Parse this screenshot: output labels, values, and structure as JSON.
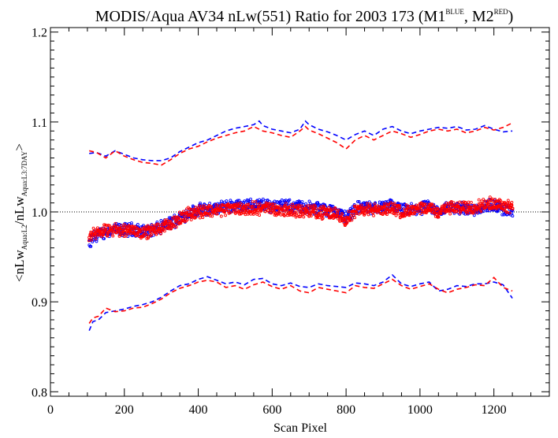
{
  "chart_data": {
    "type": "scatter",
    "title_main": "MODIS/Aqua AV34 nLw(551) Ratio for 2003 173 (M1",
    "title_sup1": "BLUE",
    "title_sep": ", M2",
    "title_sup2": "RED",
    "title_end": ")",
    "xlabel": "Scan Pixel",
    "ylabel_parts": {
      "open": "<nLw",
      "sub1": "Aqua:L2",
      "mid": "/nLw",
      "sub2": "Aqua:L3:7DAY",
      "close": ">"
    },
    "xlim": [
      0,
      1350
    ],
    "ylim": [
      0.795,
      1.205
    ],
    "xticks": [
      0,
      200,
      400,
      600,
      800,
      1000,
      1200
    ],
    "xtick_labels": [
      "0",
      "200",
      "400",
      "600",
      "800",
      "1000",
      "1200"
    ],
    "yticks": [
      0.8,
      0.9,
      1.0,
      1.1,
      1.2
    ],
    "ytick_labels": [
      "0.8",
      "0.9",
      "1.0",
      "1.1",
      "1.2"
    ],
    "reference_line": {
      "y": 1.0,
      "style": "dotted",
      "color": "#000000"
    },
    "grid": false,
    "series": [
      {
        "color": "#0000ff",
        "marker": "open-circle",
        "mean_profile": {
          "x": [
            105,
            115,
            130,
            150,
            175,
            200,
            225,
            250,
            275,
            300,
            325,
            350,
            375,
            400,
            425,
            450,
            475,
            500,
            525,
            550,
            575,
            600,
            625,
            650,
            675,
            700,
            725,
            750,
            775,
            800,
            825,
            850,
            875,
            900,
            925,
            950,
            975,
            1000,
            1025,
            1050,
            1075,
            1100,
            1125,
            1150,
            1175,
            1200,
            1225,
            1250
          ],
          "y": [
            0.962,
            0.972,
            0.975,
            0.978,
            0.98,
            0.98,
            0.981,
            0.978,
            0.98,
            0.983,
            0.988,
            0.993,
            0.999,
            1.002,
            1.003,
            1.004,
            1.006,
            1.007,
            1.007,
            1.008,
            1.008,
            1.007,
            1.007,
            1.006,
            1.006,
            1.005,
            1.004,
            1.002,
            1.0,
            0.994,
            1.004,
            1.006,
            1.004,
            1.005,
            1.007,
            1.002,
            1.002,
            1.004,
            1.005,
            1.0,
            1.005,
            1.004,
            1.004,
            1.003,
            1.006,
            1.008,
            1.003,
            1.001
          ]
        },
        "upper_dashed": {
          "x": [
            105,
            125,
            150,
            175,
            200,
            225,
            250,
            275,
            300,
            325,
            350,
            375,
            400,
            425,
            450,
            475,
            500,
            525,
            550,
            565,
            575,
            600,
            625,
            650,
            675,
            690,
            700,
            725,
            750,
            775,
            800,
            825,
            850,
            875,
            900,
            925,
            950,
            975,
            1000,
            1025,
            1050,
            1075,
            1100,
            1125,
            1150,
            1175,
            1200,
            1225,
            1250
          ],
          "y": [
            1.065,
            1.066,
            1.062,
            1.068,
            1.064,
            1.06,
            1.058,
            1.057,
            1.057,
            1.06,
            1.067,
            1.072,
            1.077,
            1.08,
            1.085,
            1.09,
            1.093,
            1.095,
            1.097,
            1.101,
            1.096,
            1.092,
            1.09,
            1.088,
            1.092,
            1.101,
            1.097,
            1.092,
            1.089,
            1.085,
            1.08,
            1.086,
            1.09,
            1.085,
            1.092,
            1.095,
            1.09,
            1.087,
            1.09,
            1.092,
            1.094,
            1.093,
            1.095,
            1.091,
            1.092,
            1.096,
            1.092,
            1.089,
            1.09
          ]
        },
        "lower_dashed": {
          "x": [
            105,
            115,
            130,
            150,
            175,
            200,
            225,
            250,
            275,
            300,
            325,
            350,
            375,
            400,
            425,
            450,
            475,
            500,
            525,
            550,
            575,
            600,
            625,
            650,
            675,
            700,
            725,
            750,
            775,
            800,
            825,
            850,
            875,
            900,
            925,
            950,
            975,
            1000,
            1025,
            1050,
            1075,
            1100,
            1125,
            1150,
            1175,
            1200,
            1225,
            1250
          ],
          "y": [
            0.868,
            0.878,
            0.88,
            0.888,
            0.89,
            0.892,
            0.895,
            0.897,
            0.9,
            0.905,
            0.912,
            0.918,
            0.92,
            0.925,
            0.928,
            0.924,
            0.92,
            0.922,
            0.919,
            0.925,
            0.926,
            0.92,
            0.918,
            0.921,
            0.917,
            0.916,
            0.92,
            0.918,
            0.917,
            0.916,
            0.921,
            0.92,
            0.918,
            0.922,
            0.93,
            0.92,
            0.917,
            0.92,
            0.922,
            0.912,
            0.914,
            0.918,
            0.917,
            0.92,
            0.92,
            0.922,
            0.919,
            0.904
          ]
        }
      },
      {
        "color": "#ff0000",
        "marker": "open-circle",
        "mean_profile": {
          "x": [
            105,
            115,
            130,
            150,
            175,
            200,
            225,
            250,
            275,
            300,
            325,
            350,
            375,
            400,
            425,
            450,
            475,
            500,
            525,
            550,
            575,
            600,
            625,
            650,
            675,
            700,
            725,
            750,
            775,
            800,
            825,
            850,
            875,
            900,
            925,
            950,
            975,
            1000,
            1025,
            1050,
            1075,
            1100,
            1125,
            1150,
            1175,
            1200,
            1225,
            1250
          ],
          "y": [
            0.967,
            0.976,
            0.977,
            0.979,
            0.98,
            0.98,
            0.98,
            0.977,
            0.979,
            0.982,
            0.987,
            0.992,
            0.998,
            1.001,
            1.001,
            1.002,
            1.003,
            1.004,
            1.003,
            1.004,
            1.004,
            1.004,
            1.002,
            1.002,
            1.001,
            1.001,
            1.0,
            0.999,
            0.998,
            0.991,
            1.001,
            1.003,
            1.002,
            1.002,
            1.005,
            1.0,
            1.001,
            1.003,
            1.004,
            1.0,
            1.005,
            1.004,
            1.005,
            1.006,
            1.008,
            1.01,
            1.008,
            1.006
          ]
        },
        "upper_dashed": {
          "x": [
            105,
            125,
            150,
            175,
            200,
            225,
            250,
            275,
            300,
            325,
            350,
            375,
            400,
            425,
            450,
            475,
            500,
            525,
            550,
            575,
            600,
            625,
            650,
            675,
            690,
            700,
            725,
            750,
            775,
            800,
            825,
            850,
            875,
            900,
            925,
            950,
            975,
            1000,
            1025,
            1050,
            1075,
            1100,
            1125,
            1150,
            1175,
            1200,
            1225,
            1250
          ],
          "y": [
            1.068,
            1.066,
            1.06,
            1.068,
            1.062,
            1.058,
            1.055,
            1.054,
            1.052,
            1.058,
            1.065,
            1.07,
            1.073,
            1.078,
            1.082,
            1.085,
            1.088,
            1.09,
            1.095,
            1.09,
            1.088,
            1.085,
            1.083,
            1.09,
            1.095,
            1.091,
            1.087,
            1.082,
            1.077,
            1.07,
            1.08,
            1.085,
            1.08,
            1.085,
            1.09,
            1.087,
            1.083,
            1.086,
            1.09,
            1.092,
            1.09,
            1.092,
            1.088,
            1.09,
            1.094,
            1.091,
            1.094,
            1.099
          ]
        },
        "lower_dashed": {
          "x": [
            105,
            115,
            130,
            150,
            175,
            200,
            225,
            250,
            275,
            300,
            325,
            350,
            375,
            400,
            425,
            450,
            475,
            500,
            525,
            550,
            575,
            600,
            625,
            650,
            675,
            700,
            725,
            750,
            775,
            800,
            825,
            850,
            875,
            900,
            925,
            950,
            975,
            1000,
            1025,
            1050,
            1075,
            1100,
            1125,
            1150,
            1175,
            1200,
            1225,
            1250
          ],
          "y": [
            0.876,
            0.882,
            0.884,
            0.893,
            0.889,
            0.89,
            0.893,
            0.894,
            0.898,
            0.903,
            0.91,
            0.915,
            0.918,
            0.922,
            0.924,
            0.922,
            0.916,
            0.918,
            0.914,
            0.919,
            0.922,
            0.917,
            0.914,
            0.918,
            0.912,
            0.91,
            0.916,
            0.914,
            0.912,
            0.91,
            0.918,
            0.916,
            0.915,
            0.92,
            0.925,
            0.918,
            0.914,
            0.917,
            0.92,
            0.914,
            0.91,
            0.914,
            0.916,
            0.919,
            0.918,
            0.927,
            0.916,
            0.912
          ]
        }
      }
    ]
  }
}
